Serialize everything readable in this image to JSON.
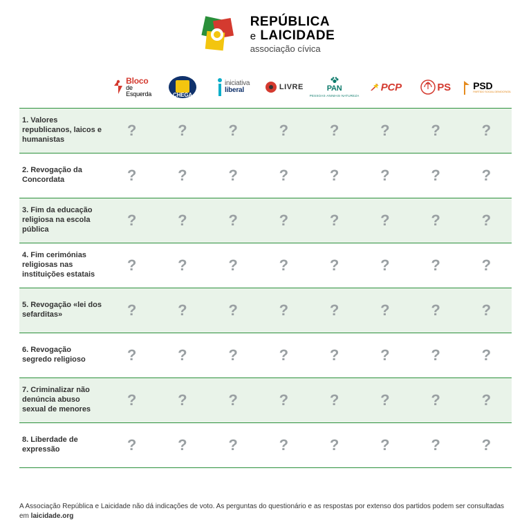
{
  "brand": {
    "line1": "REPÚBLICA",
    "line2_small": "e",
    "line2": " LAICIDADE",
    "line3": "associação cívica",
    "colors": {
      "green": "#2a8f3a",
      "red": "#d43a2f",
      "yellow": "#f3c50f",
      "orange": "#e58b1f"
    }
  },
  "parties": [
    {
      "id": "bloco",
      "name": "Bloco de Esquerda",
      "color": "#d43a2f"
    },
    {
      "id": "chega",
      "name": "CHEGA",
      "color": "#10326b"
    },
    {
      "id": "il",
      "name": "iniciativa liberal",
      "color": "#0daec9"
    },
    {
      "id": "livre",
      "name": "LIVRE",
      "color": "#d43a2f"
    },
    {
      "id": "pan",
      "name": "PAN",
      "color": "#0c7a6b"
    },
    {
      "id": "pcp",
      "name": "PCP",
      "color": "#d43a2f"
    },
    {
      "id": "ps",
      "name": "PS",
      "color": "#d43a2f"
    },
    {
      "id": "psd",
      "name": "PSD",
      "color": "#e58b1f"
    }
  ],
  "questions": [
    "1. Valores republicanos, laicos e humanistas",
    "2. Revogação da Concordata",
    "3. Fim da educação religiosa na escola pública",
    "4. Fim cerimónias religiosas nas instituições estatais",
    "5. Revogação «lei dos sefarditas»",
    "6. Revogação segredo religioso",
    "7. Criminalizar não denúncia abuso sexual de menores",
    "8. Liberdade de expressão"
  ],
  "cell_placeholder": "?",
  "footer": {
    "text": "A Associação República e Laicidade não dá indicações de voto. As perguntas do questionário e as respostas por extenso dos partidos podem ser consultadas em ",
    "site": "laicidade.org"
  },
  "style": {
    "row_even_bg": "#e9f3e9",
    "border_color": "#2a8f3a",
    "placeholder_color": "#9aa0a3"
  }
}
